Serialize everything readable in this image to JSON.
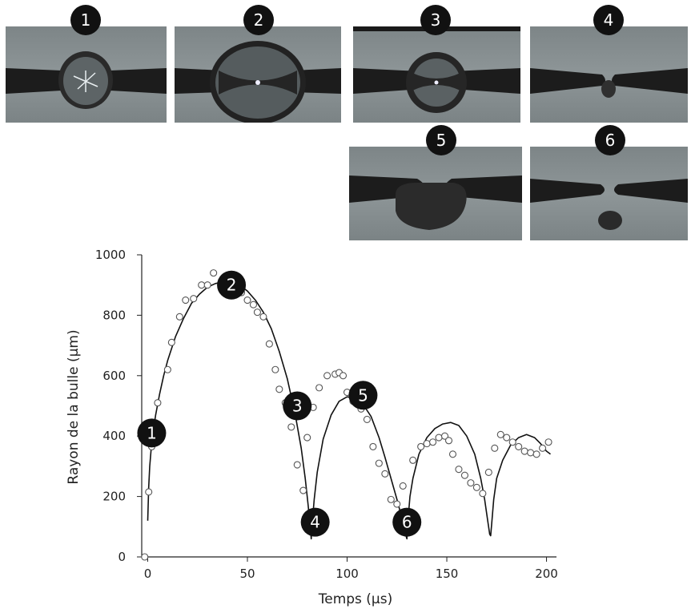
{
  "photos": [
    {
      "label": "1",
      "stage": "bubble-small"
    },
    {
      "label": "2",
      "stage": "bubble-max"
    },
    {
      "label": "3",
      "stage": "bubble-collapsing"
    },
    {
      "label": "4",
      "stage": "collapsed"
    },
    {
      "label": "5",
      "stage": "rebound"
    },
    {
      "label": "6",
      "stage": "collapsed-residue"
    }
  ],
  "chart_data": {
    "type": "scatter",
    "xlabel": "Temps (µs)",
    "ylabel": "Rayon de la bulle (µm)",
    "xlim": [
      -3,
      205
    ],
    "ylim": [
      0,
      1000
    ],
    "xticks": [
      0,
      50,
      100,
      150,
      200
    ],
    "yticks": [
      0,
      200,
      400,
      600,
      800,
      1000
    ],
    "series": [
      {
        "kind": "points",
        "x": [
          -1.5,
          0.5,
          2,
          5,
          10,
          12,
          16,
          19,
          23,
          27,
          30,
          33,
          37,
          40,
          43,
          47,
          50,
          53,
          55,
          58,
          61,
          64,
          66,
          69,
          72,
          75,
          78,
          80,
          83,
          86,
          90,
          94,
          96,
          98,
          100,
          103,
          107,
          110,
          113,
          116,
          119,
          122,
          125,
          128,
          133,
          137,
          140,
          143,
          146,
          149,
          151,
          153,
          156,
          159,
          162,
          165,
          168,
          171,
          174,
          177,
          180,
          183,
          186,
          189,
          192,
          195,
          198,
          201
        ],
        "y": [
          0,
          215,
          365,
          510,
          620,
          710,
          795,
          850,
          855,
          900,
          900,
          940,
          905,
          895,
          880,
          875,
          850,
          835,
          810,
          795,
          705,
          620,
          555,
          510,
          430,
          305,
          220,
          395,
          495,
          560,
          600,
          605,
          610,
          600,
          545,
          515,
          490,
          455,
          365,
          310,
          275,
          190,
          175,
          235,
          320,
          365,
          375,
          380,
          395,
          400,
          385,
          340,
          290,
          270,
          245,
          230,
          210,
          280,
          360,
          405,
          395,
          380,
          365,
          350,
          345,
          340,
          360,
          380
        ]
      },
      {
        "kind": "line",
        "x": [
          0,
          0.5,
          1,
          2,
          4,
          6,
          8,
          10,
          14,
          18,
          22,
          26,
          30,
          34,
          38,
          42,
          46,
          50,
          54,
          58,
          62,
          66,
          70,
          74,
          77,
          79,
          80.5,
          81.5,
          82,
          82.5,
          83.5,
          85,
          88,
          92,
          96,
          100,
          104,
          108,
          112,
          116,
          119,
          122,
          125,
          127,
          128.5,
          129.5,
          130,
          130.5,
          131.5,
          133,
          136,
          140,
          144,
          148,
          152,
          156,
          160,
          164,
          167,
          169,
          170.5,
          171.5,
          172,
          172.5,
          173.5,
          175,
          178,
          182,
          186,
          190,
          194,
          197,
          200,
          202
        ],
        "y": [
          120,
          230,
          300,
          380,
          470,
          540,
          600,
          650,
          730,
          790,
          840,
          870,
          893,
          905,
          910,
          908,
          900,
          880,
          850,
          810,
          755,
          680,
          590,
          470,
          360,
          260,
          170,
          100,
          60,
          110,
          190,
          280,
          390,
          470,
          515,
          530,
          525,
          505,
          465,
          395,
          330,
          260,
          190,
          140,
          95,
          70,
          60,
          120,
          200,
          260,
          340,
          395,
          425,
          440,
          445,
          435,
          400,
          340,
          260,
          190,
          120,
          75,
          70,
          110,
          190,
          260,
          320,
          370,
          395,
          405,
          395,
          375,
          350,
          340
        ]
      }
    ],
    "markers": [
      {
        "label": "1",
        "x": 2,
        "y": 410
      },
      {
        "label": "2",
        "x": 42,
        "y": 900
      },
      {
        "label": "3",
        "x": 75,
        "y": 500
      },
      {
        "label": "4",
        "x": 84,
        "y": 115
      },
      {
        "label": "5",
        "x": 108,
        "y": 535
      },
      {
        "label": "6",
        "x": 130,
        "y": 115
      }
    ]
  }
}
